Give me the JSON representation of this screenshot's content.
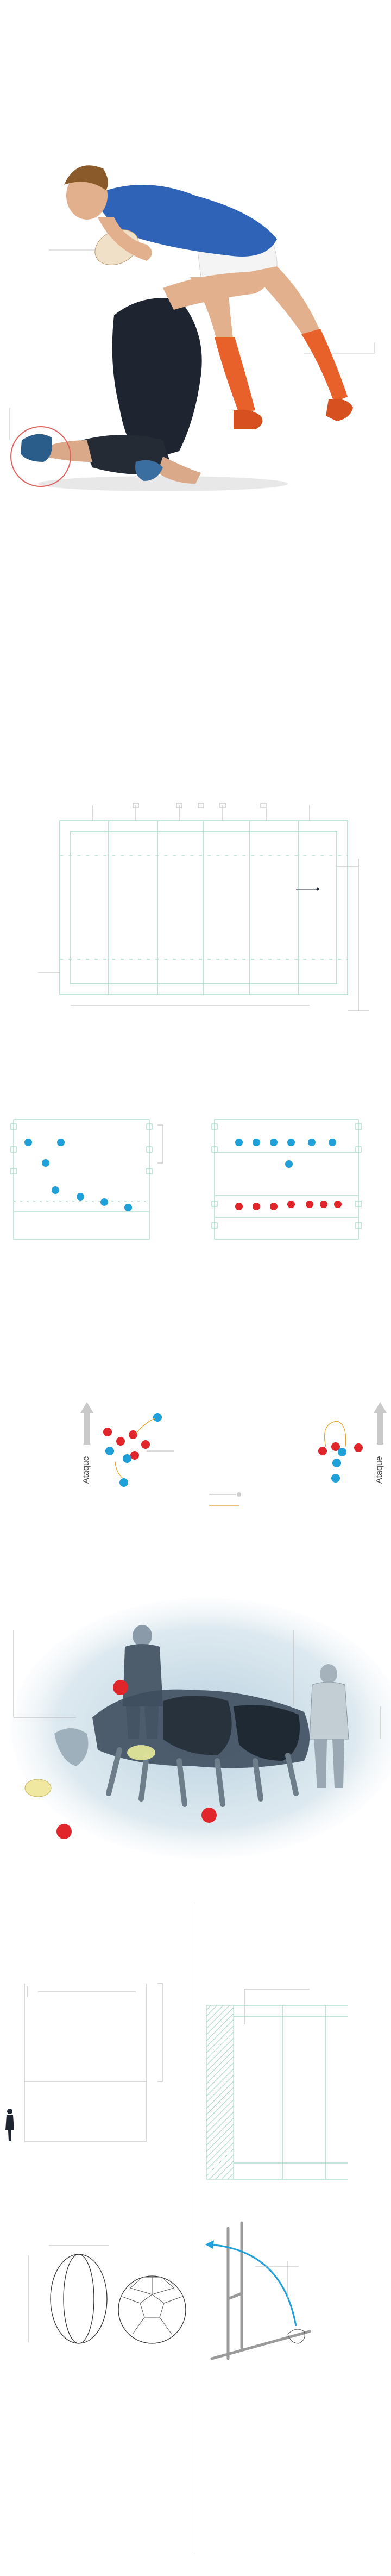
{
  "graphic": {
    "title": "",
    "colors": {
      "field_lines": "#9fd3c1",
      "annotation": "#b5b5b5",
      "blue_player": "#1fa0d8",
      "red_player": "#e0262b",
      "attack_arrow": "#c9c9c9",
      "highlight_circle": "#e06060",
      "dark_divider": "#d0d0d0",
      "goal_arrow": "#1fa0d8"
    }
  },
  "sections": {
    "tackle_illustration": {
      "description_visible": false,
      "icon": "tackle-illustration"
    },
    "field_diagram": {
      "icon": "rugby-field-diagram"
    },
    "lineout_formations": {
      "icon": "lineout-diagrams"
    },
    "attack_diagrams": {
      "left_label": "Ataque",
      "right_label": "Ataque"
    },
    "scrum_illustration": {
      "icon": "scrum-illustration"
    },
    "goalposts": {
      "icon": "goalposts-diagram"
    },
    "balls": {
      "icon": "ball-comparison"
    },
    "kick_over_posts": {
      "icon": "conversion-kick-diagram"
    }
  }
}
